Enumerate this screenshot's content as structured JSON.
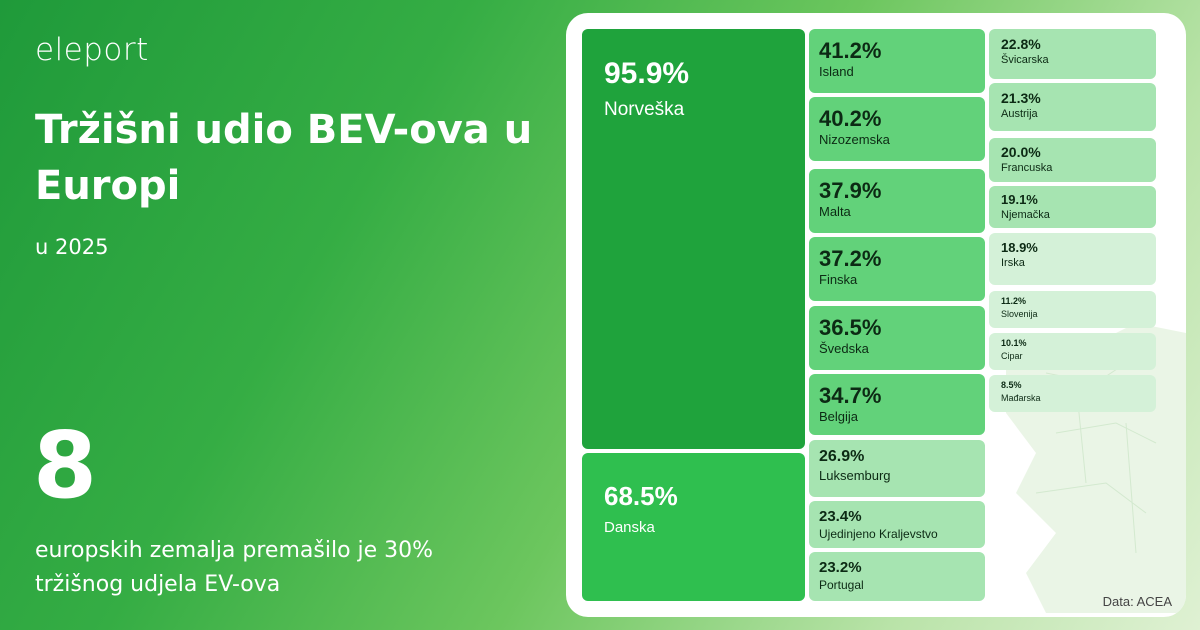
{
  "brand": {
    "logo_text": "eleport"
  },
  "header": {
    "title": "Tržišni udio BEV-ova u Europi",
    "subtitle": "u 2025"
  },
  "highlight": {
    "number": "8",
    "caption": "europskih zemalja premašilo je 30% tržišnog udjela EV-ova"
  },
  "source": "Data: ACEA",
  "colors": {
    "dark": "#1fa33c",
    "medium": "#2fbf4f",
    "mid": "#62d27a",
    "light": "#a6e4b1",
    "pale": "#d4f1d8"
  },
  "chart_data": {
    "type": "treemap",
    "unit": "%",
    "items": [
      {
        "country": "Norveška",
        "value": 95.9,
        "label": "95.9%"
      },
      {
        "country": "Danska",
        "value": 68.5,
        "label": "68.5%"
      },
      {
        "country": "Island",
        "value": 41.2,
        "label": "41.2%"
      },
      {
        "country": "Nizozemska",
        "value": 40.2,
        "label": "40.2%"
      },
      {
        "country": "Malta",
        "value": 37.9,
        "label": "37.9%"
      },
      {
        "country": "Finska",
        "value": 37.2,
        "label": "37.2%"
      },
      {
        "country": "Švedska",
        "value": 36.5,
        "label": "36.5%"
      },
      {
        "country": "Belgija",
        "value": 34.7,
        "label": "34.7%"
      },
      {
        "country": "Luksemburg",
        "value": 26.9,
        "label": "26.9%"
      },
      {
        "country": "Ujedinjeno Kraljevstvo",
        "value": 23.4,
        "label": "23.4%"
      },
      {
        "country": "Portugal",
        "value": 23.2,
        "label": "23.2%"
      },
      {
        "country": "Švicarska",
        "value": 22.8,
        "label": "22.8%"
      },
      {
        "country": "Austrija",
        "value": 21.3,
        "label": "21.3%"
      },
      {
        "country": "Francuska",
        "value": 20.0,
        "label": "20.0%"
      },
      {
        "country": "Njemačka",
        "value": 19.1,
        "label": "19.1%"
      },
      {
        "country": "Irska",
        "value": 18.9,
        "label": "18.9%"
      },
      {
        "country": "Slovenija",
        "value": 11.2,
        "label": "11.2%"
      },
      {
        "country": "Cipar",
        "value": 10.1,
        "label": "10.1%"
      },
      {
        "country": "Mađarska",
        "value": 8.5,
        "label": "8.5%"
      }
    ]
  }
}
